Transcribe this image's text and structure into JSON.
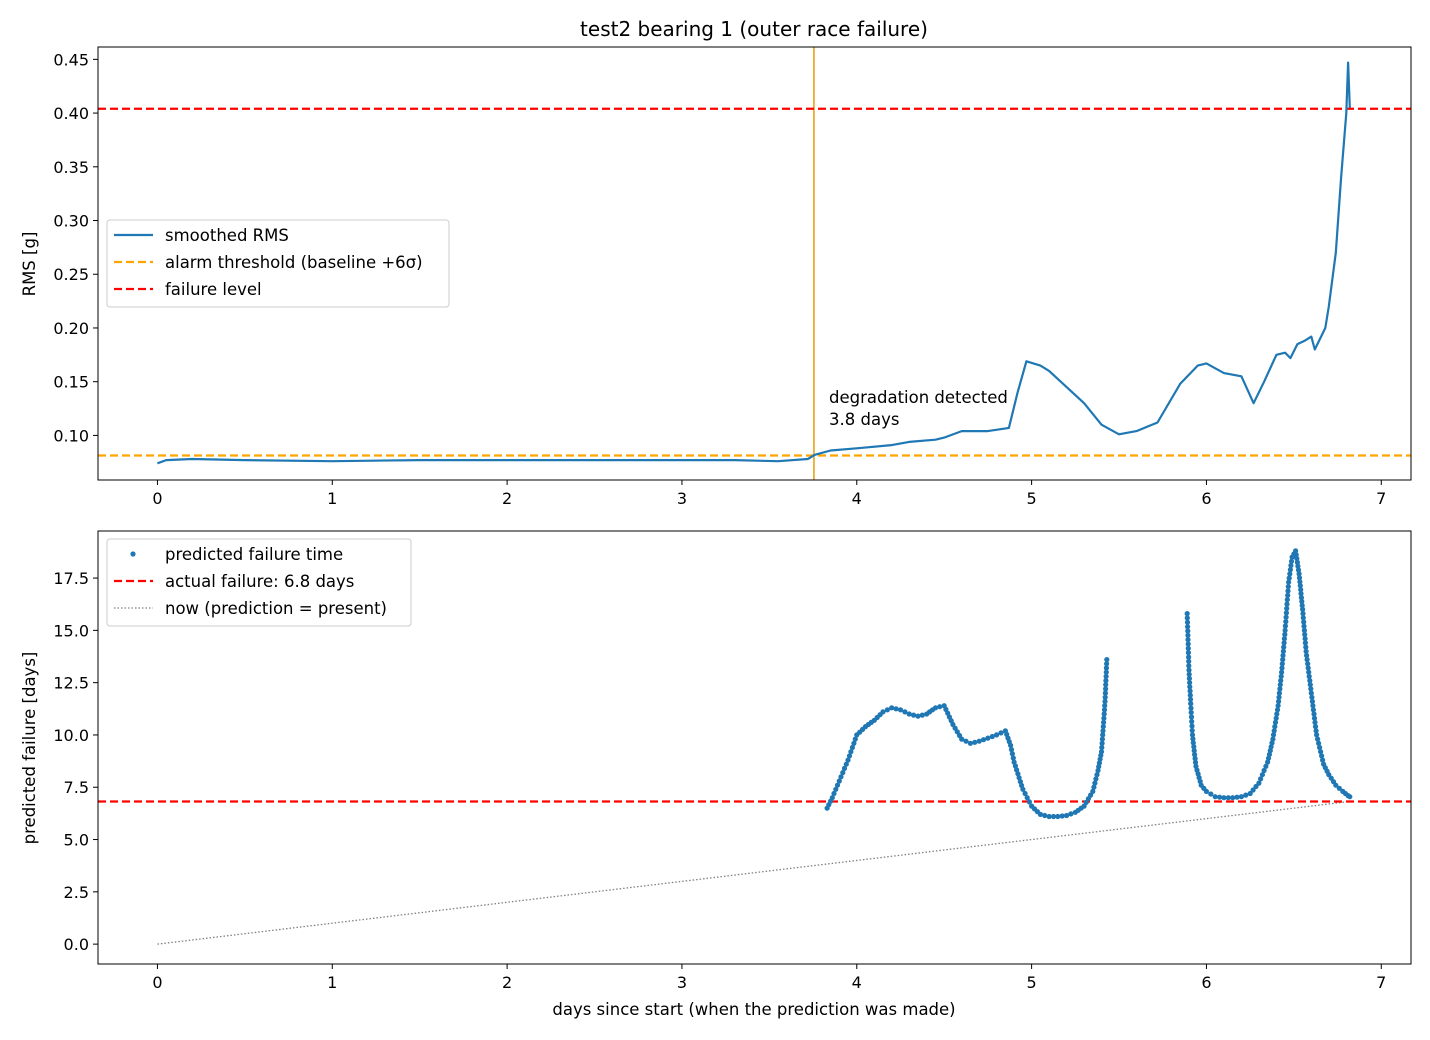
{
  "figure_title": "test2 bearing 1 (outer race failure)",
  "colors": {
    "rms": "#1f77b4",
    "alarm": "#ffa500",
    "failure": "#ff0000",
    "detect_line": "#e8a317",
    "now_line": "#808080",
    "points": "#1f77b4"
  },
  "chart_data": [
    {
      "type": "line",
      "title": "test2 bearing 1 (outer race failure)",
      "xlabel": "",
      "ylabel": "RMS [g]",
      "xlim": [
        -0.34,
        7.17
      ],
      "ylim": [
        0.0585,
        0.4615
      ],
      "xticks": [
        0,
        1,
        2,
        3,
        4,
        5,
        6,
        7
      ],
      "xtick_labels": [
        "0",
        "1",
        "2",
        "3",
        "4",
        "5",
        "6",
        "7"
      ],
      "yticks": [
        0.1,
        0.15,
        0.2,
        0.25,
        0.3,
        0.35,
        0.4,
        0.45
      ],
      "ytick_labels": [
        "0.10",
        "0.15",
        "0.20",
        "0.25",
        "0.30",
        "0.35",
        "0.40",
        "0.45"
      ],
      "legend": {
        "placement": "center-left",
        "entries": [
          "smoothed RMS",
          "alarm threshold (baseline +6σ)",
          "failure level"
        ]
      },
      "series": [
        {
          "name": "smoothed RMS",
          "style": "solid",
          "x": [
            0,
            0.05,
            0.2,
            0.5,
            1.0,
            1.5,
            2.0,
            2.5,
            3.0,
            3.3,
            3.55,
            3.72,
            3.76,
            3.85,
            4.0,
            4.2,
            4.3,
            4.45,
            4.5,
            4.6,
            4.75,
            4.87,
            4.92,
            4.97,
            5.05,
            5.1,
            5.2,
            5.3,
            5.4,
            5.5,
            5.6,
            5.72,
            5.85,
            5.95,
            6.0,
            6.1,
            6.2,
            6.27,
            6.33,
            6.4,
            6.45,
            6.48,
            6.52,
            6.56,
            6.6,
            6.62,
            6.68,
            6.7,
            6.74,
            6.77,
            6.8,
            6.81,
            6.82
          ],
          "y": [
            0.074,
            0.077,
            0.078,
            0.077,
            0.076,
            0.077,
            0.077,
            0.077,
            0.077,
            0.077,
            0.076,
            0.078,
            0.082,
            0.086,
            0.088,
            0.091,
            0.094,
            0.096,
            0.098,
            0.104,
            0.104,
            0.107,
            0.14,
            0.169,
            0.165,
            0.16,
            0.145,
            0.13,
            0.11,
            0.101,
            0.104,
            0.112,
            0.148,
            0.165,
            0.167,
            0.158,
            0.155,
            0.13,
            0.15,
            0.175,
            0.177,
            0.172,
            0.185,
            0.188,
            0.192,
            0.18,
            0.2,
            0.22,
            0.27,
            0.34,
            0.4,
            0.447,
            0.405
          ]
        },
        {
          "name": "alarm threshold (baseline +6σ)",
          "style": "dashed",
          "y": 0.0813
        },
        {
          "name": "failure level",
          "style": "dashed",
          "y": 0.404
        }
      ],
      "detection_x": 3.755,
      "annotations": [
        {
          "text": "degradation detected",
          "x": 3.82,
          "y": 0.125
        },
        {
          "text": "3.8 days",
          "x": 3.82,
          "y": 0.1095
        }
      ]
    },
    {
      "type": "scatter",
      "title": "",
      "xlabel": "days since start (when the prediction was made)",
      "ylabel": "predicted failure [days]",
      "xlim": [
        -0.34,
        7.17
      ],
      "ylim": [
        -0.95,
        19.75
      ],
      "xticks": [
        0,
        1,
        2,
        3,
        4,
        5,
        6,
        7
      ],
      "xtick_labels": [
        "0",
        "1",
        "2",
        "3",
        "4",
        "5",
        "6",
        "7"
      ],
      "yticks": [
        0,
        2.5,
        5,
        7.5,
        10,
        12.5,
        15,
        17.5
      ],
      "ytick_labels": [
        "0.0",
        "2.5",
        "5.0",
        "7.5",
        "10.0",
        "12.5",
        "15.0",
        "17.5"
      ],
      "legend": {
        "placement": "upper-left",
        "entries": [
          "predicted failure time",
          "actual failure: 6.8 days",
          "now (prediction = present)"
        ]
      },
      "series": [
        {
          "name": "predicted failure time",
          "segments": [
            {
              "x": [
                3.83,
                3.86,
                3.9,
                3.95,
                4.0,
                4.05,
                4.1,
                4.15,
                4.2,
                4.25,
                4.3,
                4.35,
                4.4,
                4.45,
                4.5,
                4.55,
                4.6,
                4.65,
                4.7,
                4.75,
                4.8,
                4.85,
                4.88,
                4.9,
                4.95,
                5.0,
                5.05,
                5.1,
                5.15,
                5.2,
                5.25,
                5.3,
                5.35,
                5.38,
                5.4,
                5.42,
                5.43
              ],
              "y": [
                6.5,
                7.0,
                7.8,
                8.8,
                10.0,
                10.4,
                10.7,
                11.1,
                11.3,
                11.2,
                11.0,
                10.9,
                11.0,
                11.3,
                11.4,
                10.5,
                9.8,
                9.6,
                9.7,
                9.85,
                10.0,
                10.2,
                9.5,
                8.7,
                7.4,
                6.6,
                6.2,
                6.1,
                6.1,
                6.15,
                6.3,
                6.6,
                7.3,
                8.3,
                9.2,
                11.6,
                13.6
              ]
            },
            {
              "x": [
                5.89,
                5.9,
                5.91,
                5.92,
                5.94,
                5.97,
                6.0,
                6.05,
                6.1,
                6.15,
                6.2,
                6.25,
                6.3,
                6.35,
                6.38,
                6.41,
                6.43,
                6.45,
                6.47,
                6.49,
                6.51,
                6.53,
                6.55,
                6.57,
                6.6,
                6.63,
                6.67,
                6.7,
                6.74,
                6.78,
                6.81,
                6.82
              ],
              "y": [
                15.8,
                13.1,
                11.5,
                10.0,
                8.5,
                7.6,
                7.3,
                7.05,
                7.0,
                7.0,
                7.05,
                7.2,
                7.7,
                8.7,
                9.8,
                11.4,
                13.0,
                15.0,
                17.3,
                18.5,
                18.8,
                17.7,
                16.0,
                14.0,
                12.0,
                10.0,
                8.6,
                8.1,
                7.6,
                7.3,
                7.1,
                7.05
              ]
            }
          ]
        },
        {
          "name": "actual failure: 6.8 days",
          "style": "dashed",
          "y": 6.82
        },
        {
          "name": "now (prediction = present)",
          "style": "dotted",
          "x": [
            0,
            6.82
          ],
          "y": [
            0,
            6.82
          ]
        }
      ]
    }
  ]
}
